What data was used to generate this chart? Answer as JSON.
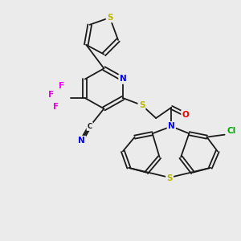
{
  "background_color": "#ebebeb",
  "bond_color": "#1a1a1a",
  "atom_colors": {
    "S": "#b8b800",
    "N": "#0000ee",
    "O": "#ee0000",
    "F": "#ee00ee",
    "Cl": "#00aa00",
    "C": "#1a1a1a"
  },
  "figsize": [
    3.0,
    3.0
  ],
  "dpi": 100,
  "lw": 1.3,
  "fontsize": 7.5
}
